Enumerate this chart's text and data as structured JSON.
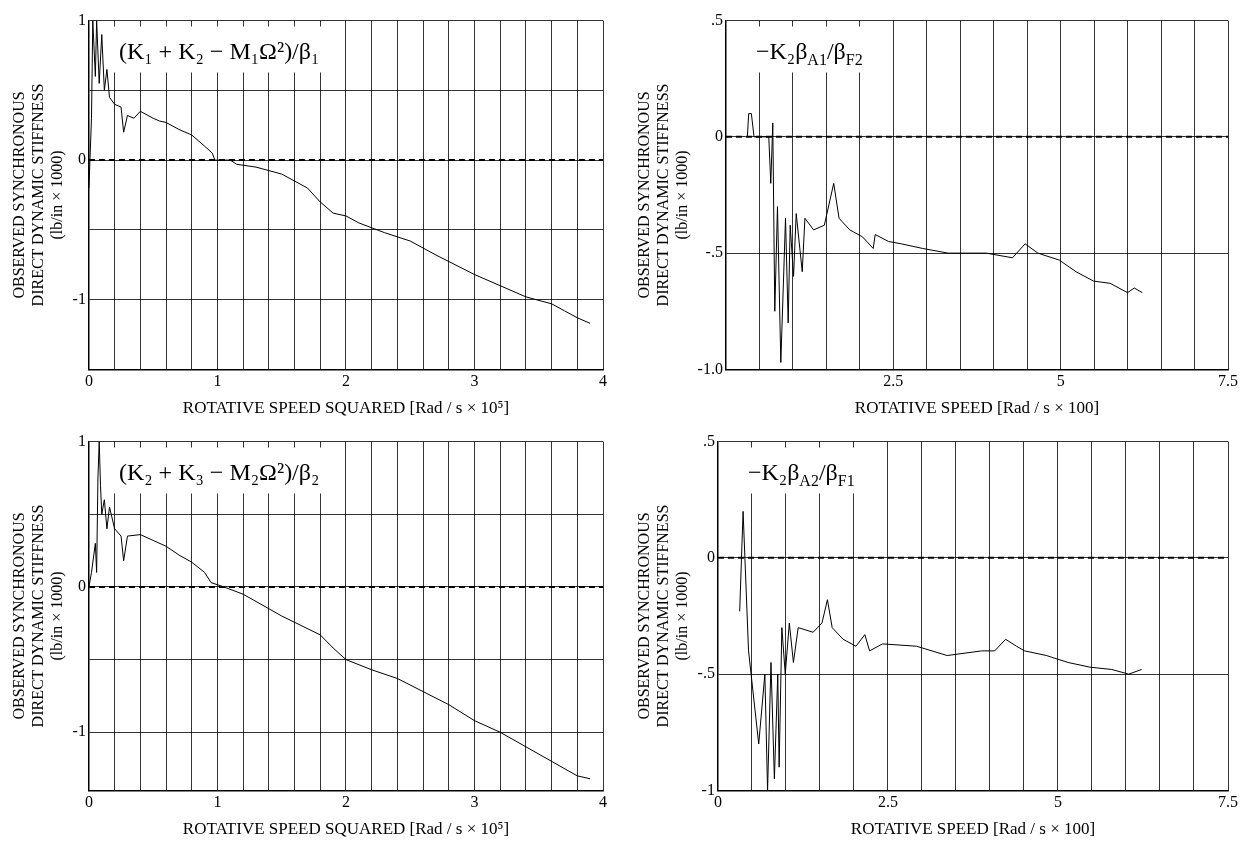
{
  "chart_data": [
    {
      "type": "line",
      "title": "(K₁ + K₂ − M₁Ω²)/β₁",
      "xlabel": "ROTATIVE SPEED SQUARED [Rad / s × 10⁵]",
      "ylabel": "OBSERVED SYNCHRONOUS\nDIRECT DYNAMIC STIFFNESS\n(lb/in × 1000)",
      "xlim": [
        0,
        4
      ],
      "ylim": [
        -1.5,
        1
      ],
      "xticks": [
        0,
        {
          "value": 0.2,
          "label": null
        },
        {
          "value": 0.4,
          "label": null
        },
        {
          "value": 0.6,
          "label": null
        },
        {
          "value": 0.8,
          "label": null
        },
        1,
        {
          "value": 1.2,
          "label": null
        },
        {
          "value": 1.4,
          "label": null
        },
        {
          "value": 1.6,
          "label": null
        },
        {
          "value": 1.8,
          "label": null
        },
        2,
        {
          "value": 2.2,
          "label": null
        },
        {
          "value": 2.4,
          "label": null
        },
        {
          "value": 2.6,
          "label": null
        },
        {
          "value": 2.8,
          "label": null
        },
        3,
        {
          "value": 3.2,
          "label": null
        },
        {
          "value": 3.4,
          "label": null
        },
        {
          "value": 3.6,
          "label": null
        },
        {
          "value": 3.8,
          "label": null
        },
        4
      ],
      "yticks": [
        -1,
        {
          "value": -0.5,
          "label": null
        },
        0,
        {
          "value": 0.5,
          "label": null
        },
        1
      ],
      "grid": true,
      "ref_lines": [
        {
          "axis": "y",
          "value": 0,
          "line_style": "dashed",
          "color": "#000000"
        }
      ],
      "series": [
        {
          "color": "#000000",
          "x": [
            0,
            0.02,
            0.03,
            0.05,
            0.06,
            0.08,
            0.1,
            0.12,
            0.14,
            0.16,
            0.2,
            0.25,
            0.27,
            0.3,
            0.35,
            0.4,
            0.5,
            0.55,
            0.6,
            0.7,
            0.8,
            0.9,
            0.96,
            0.98,
            1.1,
            1.15,
            1.3,
            1.5,
            1.7,
            1.8,
            1.9,
            2.0,
            2.1,
            2.3,
            2.5,
            2.7,
            3.0,
            3.2,
            3.4,
            3.6,
            3.7,
            3.8,
            3.9
          ],
          "values": [
            -0.2,
            0.3,
            1.0,
            0.6,
            1.0,
            0.55,
            0.9,
            0.5,
            0.65,
            0.45,
            0.4,
            0.38,
            0.2,
            0.32,
            0.3,
            0.35,
            0.3,
            0.28,
            0.27,
            0.22,
            0.18,
            0.1,
            0.05,
            0.0,
            0.0,
            -0.03,
            -0.05,
            -0.1,
            -0.2,
            -0.3,
            -0.38,
            -0.4,
            -0.45,
            -0.52,
            -0.58,
            -0.68,
            -0.82,
            -0.9,
            -0.98,
            -1.03,
            -1.08,
            -1.13,
            -1.17
          ]
        }
      ]
    },
    {
      "type": "line",
      "title": "−K₂β$_{A1}$/β$_{F2}$",
      "xlabel": "ROTATIVE SPEED [Rad / s × 100]",
      "ylabel": "OBSERVED SYNCHRONOUS\nDIRECT DYNAMIC STIFFNESS\n(lb/in × 1000)",
      "xlim": [
        0,
        7.5
      ],
      "ylim": [
        -1,
        0.5
      ],
      "xticks": [
        {
          "value": 0,
          "label": null
        },
        {
          "value": 0.5,
          "label": null
        },
        {
          "value": 1,
          "label": null
        },
        {
          "value": 1.5,
          "label": null
        },
        {
          "value": 2,
          "label": null
        },
        2.5,
        {
          "value": 3,
          "label": null
        },
        {
          "value": 3.5,
          "label": null
        },
        {
          "value": 4,
          "label": null
        },
        {
          "value": 4.5,
          "label": null
        },
        5,
        {
          "value": 5.5,
          "label": null
        },
        {
          "value": 6,
          "label": null
        },
        {
          "value": 6.5,
          "label": null
        },
        {
          "value": 7,
          "label": null
        },
        7.5
      ],
      "yticks": [
        {
          "value": -1,
          "label": "-1.0"
        },
        {
          "value": -0.5,
          "label": "-.5"
        },
        0,
        {
          "value": 0.5,
          "label": ".5"
        }
      ],
      "grid": true,
      "ref_lines": [
        {
          "axis": "y",
          "value": 0,
          "line_style": "dashed",
          "color": "#000000"
        }
      ],
      "series": [
        {
          "color": "#000000",
          "x": [
            0.32,
            0.34,
            0.38,
            0.42,
            0.64,
            0.67,
            0.7,
            0.73,
            0.77,
            0.82,
            0.89,
            0.93,
            0.96,
            1.01,
            1.05,
            1.14,
            1.18,
            1.31,
            1.47,
            1.61,
            1.69,
            1.85,
            2.04,
            2.2,
            2.23,
            2.43,
            2.62,
            2.94,
            3.32,
            3.89,
            4.28,
            4.47,
            4.66,
            4.98,
            5.23,
            5.49,
            5.74,
            6.0,
            6.1,
            6.22
          ],
          "values": [
            0,
            0.1,
            0.1,
            0,
            0,
            -0.2,
            0.06,
            -0.75,
            -0.3,
            -0.97,
            -0.35,
            -0.8,
            -0.38,
            -0.6,
            -0.33,
            -0.58,
            -0.35,
            -0.4,
            -0.38,
            -0.2,
            -0.35,
            -0.4,
            -0.43,
            -0.48,
            -0.42,
            -0.45,
            -0.46,
            -0.48,
            -0.5,
            -0.5,
            -0.52,
            -0.46,
            -0.5,
            -0.53,
            -0.58,
            -0.62,
            -0.63,
            -0.67,
            -0.65,
            -0.67
          ]
        }
      ]
    },
    {
      "type": "line",
      "title": "(K₂ + K₃ − M₂Ω²)/β₂",
      "xlabel": "ROTATIVE SPEED SQUARED [Rad / s × 10⁵]",
      "ylabel": "OBSERVED SYNCHRONOUS\nDIRECT DYNAMIC STIFFNESS\n(lb/in × 1000)",
      "xlim": [
        0,
        4
      ],
      "ylim": [
        -1.4,
        1
      ],
      "xticks": [
        0,
        {
          "value": 0.2,
          "label": null
        },
        {
          "value": 0.4,
          "label": null
        },
        {
          "value": 0.6,
          "label": null
        },
        {
          "value": 0.8,
          "label": null
        },
        1,
        {
          "value": 1.2,
          "label": null
        },
        {
          "value": 1.4,
          "label": null
        },
        {
          "value": 1.6,
          "label": null
        },
        {
          "value": 1.8,
          "label": null
        },
        2,
        {
          "value": 2.2,
          "label": null
        },
        {
          "value": 2.4,
          "label": null
        },
        {
          "value": 2.6,
          "label": null
        },
        {
          "value": 2.8,
          "label": null
        },
        3,
        {
          "value": 3.2,
          "label": null
        },
        {
          "value": 3.4,
          "label": null
        },
        {
          "value": 3.6,
          "label": null
        },
        {
          "value": 3.8,
          "label": null
        },
        4
      ],
      "yticks": [
        -1,
        {
          "value": -0.5,
          "label": null
        },
        0,
        {
          "value": 0.5,
          "label": null
        },
        1
      ],
      "grid": true,
      "ref_lines": [
        {
          "axis": "y",
          "value": 0,
          "line_style": "dashed",
          "color": "#000000"
        }
      ],
      "series": [
        {
          "color": "#000000",
          "x": [
            0,
            0.02,
            0.05,
            0.06,
            0.07,
            0.08,
            0.09,
            0.1,
            0.12,
            0.14,
            0.16,
            0.2,
            0.25,
            0.27,
            0.3,
            0.4,
            0.5,
            0.6,
            0.7,
            0.8,
            0.9,
            0.95,
            1.05,
            1.2,
            1.5,
            1.8,
            1.9,
            2.0,
            2.2,
            2.4,
            2.6,
            2.8,
            3.0,
            3.2,
            3.4,
            3.6,
            3.8,
            3.9
          ],
          "values": [
            0,
            0.1,
            0.3,
            0.1,
            0.75,
            1.0,
            0.7,
            0.5,
            0.6,
            0.4,
            0.55,
            0.4,
            0.35,
            0.18,
            0.35,
            0.36,
            0.32,
            0.28,
            0.22,
            0.17,
            0.1,
            0.03,
            0,
            -0.05,
            -0.2,
            -0.33,
            -0.42,
            -0.5,
            -0.57,
            -0.63,
            -0.72,
            -0.81,
            -0.92,
            -1.0,
            -1.1,
            -1.2,
            -1.3,
            -1.32
          ]
        }
      ]
    },
    {
      "type": "line",
      "title": "−K₂β$_{A2}$/β$_{F1}$",
      "xlabel": "ROTATIVE SPEED [Rad / s × 100]",
      "ylabel": "OBSERVED SYNCHRONOUS\nDIRECT DYNAMIC STIFFNESS\n(lb/in × 1000)",
      "xlim": [
        0,
        7.5
      ],
      "ylim": [
        -1,
        0.5
      ],
      "xticks": [
        0,
        {
          "value": 0.5,
          "label": null
        },
        {
          "value": 1,
          "label": null
        },
        {
          "value": 1.5,
          "label": null
        },
        {
          "value": 2,
          "label": null
        },
        2.5,
        {
          "value": 3,
          "label": null
        },
        {
          "value": 3.5,
          "label": null
        },
        {
          "value": 4,
          "label": null
        },
        {
          "value": 4.5,
          "label": null
        },
        5,
        {
          "value": 5.5,
          "label": null
        },
        {
          "value": 6,
          "label": null
        },
        {
          "value": 6.5,
          "label": null
        },
        {
          "value": 7,
          "label": null
        },
        7.5
      ],
      "yticks": [
        -1,
        {
          "value": -0.5,
          "label": "-.5"
        },
        0,
        {
          "value": 0.5,
          "label": ".5"
        }
      ],
      "grid": true,
      "ref_lines": [
        {
          "axis": "y",
          "value": 0,
          "line_style": "dashed",
          "color": "#000000"
        }
      ],
      "series": [
        {
          "color": "#000000",
          "x": [
            0.32,
            0.37,
            0.45,
            0.6,
            0.69,
            0.73,
            0.78,
            0.83,
            0.88,
            0.9,
            0.94,
            0.99,
            1.05,
            1.11,
            1.18,
            1.4,
            1.53,
            1.61,
            1.68,
            1.84,
            2.03,
            2.16,
            2.23,
            2.42,
            2.92,
            3.37,
            3.88,
            4.07,
            4.23,
            4.39,
            4.51,
            4.83,
            5.15,
            5.47,
            5.79,
            6.04,
            6.23
          ],
          "values": [
            -0.23,
            0.2,
            -0.4,
            -0.8,
            -0.5,
            -1.0,
            -0.45,
            -0.95,
            -0.5,
            -0.9,
            -0.3,
            -0.5,
            -0.28,
            -0.45,
            -0.3,
            -0.32,
            -0.28,
            -0.18,
            -0.3,
            -0.35,
            -0.38,
            -0.33,
            -0.4,
            -0.37,
            -0.38,
            -0.42,
            -0.4,
            -0.4,
            -0.35,
            -0.38,
            -0.4,
            -0.42,
            -0.45,
            -0.47,
            -0.48,
            -0.5,
            -0.48
          ]
        }
      ]
    }
  ]
}
